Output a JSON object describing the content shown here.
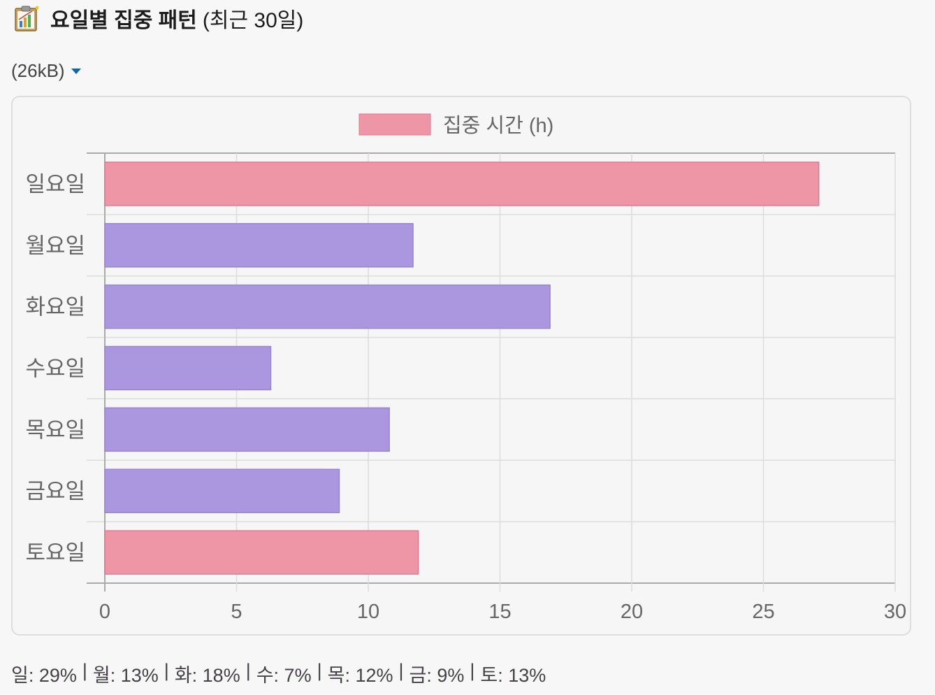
{
  "header": {
    "icon": "bar-chart-clipboard-icon",
    "title": "요일별 집중 패턴",
    "subtitle": "(최근 30일)"
  },
  "file": {
    "size_label": "(26kB)"
  },
  "colors": {
    "pink_fill": "#ee95a6",
    "pink_stroke": "#e07890",
    "purple_fill": "#ab97e0",
    "purple_stroke": "#9a84d6",
    "grid": "#dcdcdc",
    "axis": "#aaaaaa",
    "tick_text": "#666666"
  },
  "chart_data": {
    "type": "bar",
    "orientation": "horizontal",
    "categories": [
      "일요일",
      "월요일",
      "화요일",
      "수요일",
      "목요일",
      "금요일",
      "토요일"
    ],
    "series": [
      {
        "name": "집중 시간 (h)",
        "values": [
          27.1,
          11.7,
          16.9,
          6.3,
          10.8,
          8.9,
          11.9
        ]
      }
    ],
    "bar_colors": [
      "pink",
      "purple",
      "purple",
      "purple",
      "purple",
      "purple",
      "pink"
    ],
    "xlim": [
      0,
      30
    ],
    "xticks": [
      "0",
      "5",
      "10",
      "15",
      "20",
      "25",
      "30"
    ],
    "xtick_values": [
      0,
      5,
      10,
      15,
      20,
      25,
      30
    ],
    "grid": true,
    "legend_position": "top-center"
  },
  "summary": [
    {
      "label": "일: 29%"
    },
    {
      "label": "월: 13%"
    },
    {
      "label": "화: 18%"
    },
    {
      "label": "수: 7%"
    },
    {
      "label": "목: 12%"
    },
    {
      "label": "금: 9%"
    },
    {
      "label": "토: 13%"
    }
  ],
  "summary_separator": "|"
}
